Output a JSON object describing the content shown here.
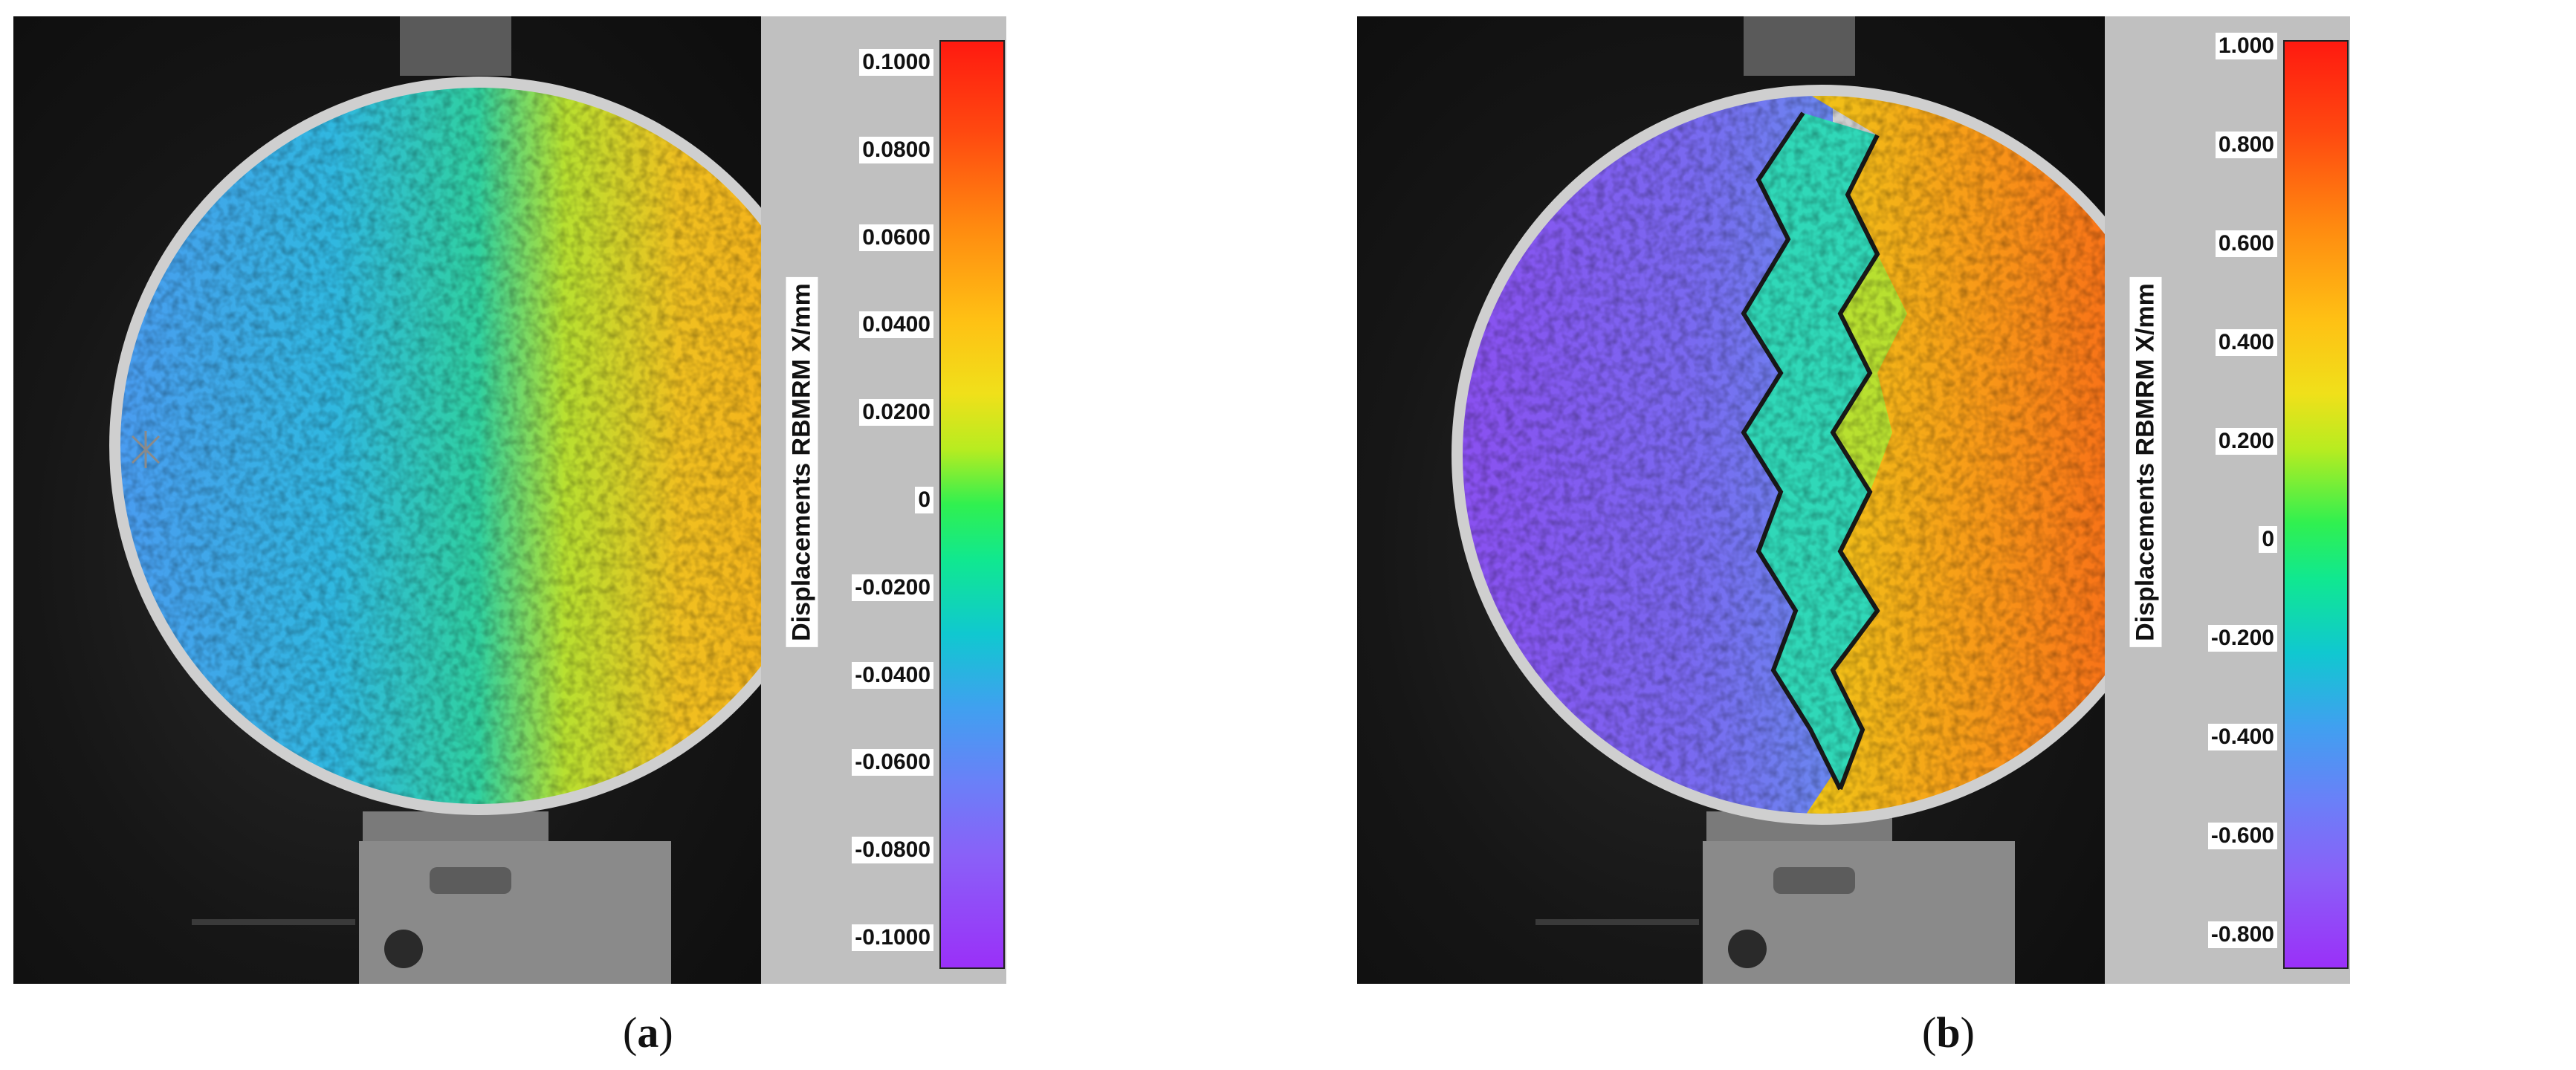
{
  "panels": [
    {
      "id": "a",
      "caption_open": "(",
      "caption_letter": "a",
      "caption_close": ")",
      "colorbar_label": "Displacements RBMRM X/mm",
      "ticks": [
        "0.1000",
        "0.0800",
        "0.0600",
        "0.0400",
        "0.0200",
        "0",
        "-0.0200",
        "-0.0400",
        "-0.0600",
        "-0.0800",
        "-0.1000"
      ],
      "range": [
        -0.1,
        0.1
      ]
    },
    {
      "id": "b",
      "caption_open": "(",
      "caption_letter": "b",
      "caption_close": ")",
      "colorbar_label": "Displacements RBMRM X/mm",
      "ticks": [
        "1.000",
        "0.800",
        "0.600",
        "0.400",
        "0.200",
        "0",
        "-0.200",
        "-0.400",
        "-0.600",
        "-0.800"
      ],
      "range": [
        -0.8,
        1.0
      ]
    }
  ],
  "colors": {
    "red": "#ff1a10",
    "orange": "#ff8a10",
    "yellow": "#f0e01a",
    "green": "#30f050",
    "cyan": "#10c8d0",
    "blue": "#6a80f8",
    "violet": "#9a30f8",
    "background": "#151515",
    "colorbar_panel": "#c0c0c0"
  }
}
